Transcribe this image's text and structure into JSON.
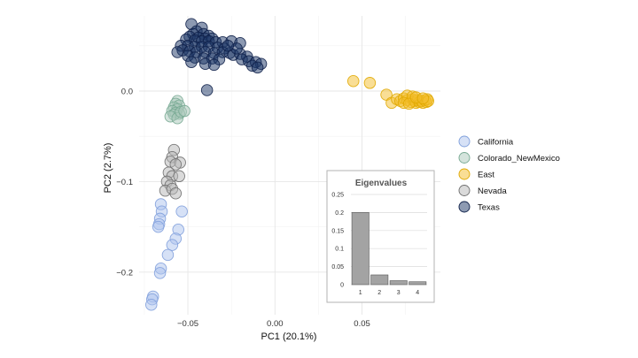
{
  "chart_data": [
    {
      "type": "scatter",
      "xlabel": "PC1 (20.1%)",
      "ylabel": "PC2 (2.7%)",
      "xlim": [
        -0.078,
        0.095
      ],
      "ylim": [
        -0.247,
        0.083
      ],
      "x_ticks": [
        -0.05,
        0.0,
        0.05
      ],
      "x_tick_labels": [
        "−0.05",
        "0.00",
        "0.05"
      ],
      "y_ticks": [
        -0.2,
        -0.1,
        0.0
      ],
      "y_tick_labels": [
        "−0.2",
        "−0.1",
        "0.0"
      ],
      "grid": true,
      "legend_position": "right",
      "series": [
        {
          "name": "California",
          "fill": "#aec4ee",
          "stroke": "#7f9fdb",
          "points": [
            [
              -0.0655,
              -0.125
            ],
            [
              -0.065,
              -0.133
            ],
            [
              -0.066,
              -0.141
            ],
            [
              -0.0665,
              -0.147
            ],
            [
              -0.067,
              -0.15
            ],
            [
              -0.0535,
              -0.133
            ],
            [
              -0.0555,
              -0.153
            ],
            [
              -0.057,
              -0.163
            ],
            [
              -0.059,
              -0.17
            ],
            [
              -0.0615,
              -0.181
            ],
            [
              -0.0655,
              -0.196
            ],
            [
              -0.066,
              -0.201
            ],
            [
              -0.07,
              -0.227
            ],
            [
              -0.0705,
              -0.23
            ],
            [
              -0.071,
              -0.236
            ]
          ]
        },
        {
          "name": "Colorado_NewMexico",
          "fill": "#a9c8b9",
          "stroke": "#77a892",
          "points": [
            [
              -0.056,
              -0.011
            ],
            [
              -0.057,
              -0.014
            ],
            [
              -0.055,
              -0.016
            ],
            [
              -0.058,
              -0.018
            ],
            [
              -0.056,
              -0.02
            ],
            [
              -0.059,
              -0.022
            ],
            [
              -0.057,
              -0.024
            ],
            [
              -0.055,
              -0.025
            ],
            [
              -0.058,
              -0.026
            ],
            [
              -0.06,
              -0.028
            ],
            [
              -0.056,
              -0.03
            ],
            [
              -0.054,
              -0.023
            ],
            [
              -0.052,
              -0.022
            ]
          ]
        },
        {
          "name": "East",
          "fill": "#f4bd2b",
          "stroke": "#e0a800",
          "points": [
            [
              0.045,
              0.011
            ],
            [
              0.0545,
              0.009
            ],
            [
              0.064,
              -0.004
            ],
            [
              0.067,
              -0.013
            ],
            [
              0.07,
              -0.009
            ],
            [
              0.072,
              -0.011
            ],
            [
              0.074,
              -0.008
            ],
            [
              0.076,
              -0.01
            ],
            [
              0.078,
              -0.012
            ],
            [
              0.079,
              -0.009
            ],
            [
              0.08,
              -0.011
            ],
            [
              0.081,
              -0.013
            ],
            [
              0.082,
              -0.01
            ],
            [
              0.083,
              -0.012
            ],
            [
              0.084,
              -0.011
            ],
            [
              0.085,
              -0.013
            ],
            [
              0.086,
              -0.01
            ],
            [
              0.087,
              -0.012
            ],
            [
              0.0875,
              -0.009
            ],
            [
              0.088,
              -0.011
            ],
            [
              0.076,
              -0.005
            ],
            [
              0.079,
              -0.006
            ],
            [
              0.074,
              -0.013
            ],
            [
              0.077,
              -0.014
            ],
            [
              0.081,
              -0.007
            ],
            [
              0.085,
              -0.008
            ]
          ]
        },
        {
          "name": "Nevada",
          "fill": "#b5b5b5",
          "stroke": "#6e6e6e",
          "points": [
            [
              -0.058,
              -0.065
            ],
            [
              -0.059,
              -0.073
            ],
            [
              -0.06,
              -0.078
            ],
            [
              -0.0545,
              -0.079
            ],
            [
              -0.057,
              -0.081
            ],
            [
              -0.061,
              -0.09
            ],
            [
              -0.059,
              -0.094
            ],
            [
              -0.055,
              -0.094
            ],
            [
              -0.062,
              -0.1
            ],
            [
              -0.06,
              -0.104
            ],
            [
              -0.063,
              -0.11
            ],
            [
              -0.059,
              -0.108
            ],
            [
              -0.057,
              -0.113
            ]
          ]
        },
        {
          "name": "Texas",
          "fill": "#1c3566",
          "stroke": "#0f2049",
          "points": [
            [
              -0.048,
              0.074
            ],
            [
              -0.042,
              0.07
            ],
            [
              -0.045,
              0.066
            ],
            [
              -0.041,
              0.063
            ],
            [
              -0.047,
              0.063
            ],
            [
              -0.038,
              0.061
            ],
            [
              -0.049,
              0.06
            ],
            [
              -0.044,
              0.059
            ],
            [
              -0.04,
              0.058
            ],
            [
              -0.036,
              0.058
            ],
            [
              -0.051,
              0.057
            ],
            [
              -0.046,
              0.056
            ],
            [
              -0.042,
              0.055
            ],
            [
              -0.038,
              0.055
            ],
            [
              -0.034,
              0.054
            ],
            [
              -0.03,
              0.054
            ],
            [
              -0.025,
              0.055
            ],
            [
              -0.02,
              0.053
            ],
            [
              -0.054,
              0.05
            ],
            [
              -0.05,
              0.05
            ],
            [
              -0.046,
              0.049
            ],
            [
              -0.042,
              0.049
            ],
            [
              -0.038,
              0.049
            ],
            [
              -0.033,
              0.048
            ],
            [
              -0.029,
              0.047
            ],
            [
              -0.053,
              0.045
            ],
            [
              -0.049,
              0.044
            ],
            [
              -0.045,
              0.043
            ],
            [
              -0.04,
              0.043
            ],
            [
              -0.035,
              0.042
            ],
            [
              -0.03,
              0.043
            ],
            [
              -0.026,
              0.042
            ],
            [
              -0.024,
              0.04
            ],
            [
              -0.02,
              0.041
            ],
            [
              -0.016,
              0.038
            ],
            [
              -0.05,
              0.039
            ],
            [
              -0.046,
              0.037
            ],
            [
              -0.041,
              0.036
            ],
            [
              -0.036,
              0.036
            ],
            [
              -0.032,
              0.035
            ],
            [
              -0.019,
              0.035
            ],
            [
              -0.015,
              0.033
            ],
            [
              -0.011,
              0.032
            ],
            [
              -0.008,
              0.03
            ],
            [
              -0.04,
              0.03
            ],
            [
              -0.035,
              0.029
            ],
            [
              -0.013,
              0.028
            ],
            [
              -0.01,
              0.026
            ],
            [
              -0.048,
              0.032
            ],
            [
              -0.056,
              0.043
            ],
            [
              -0.022,
              0.047
            ],
            [
              -0.027,
              0.05
            ],
            [
              -0.039,
              0.001
            ]
          ]
        }
      ],
      "legend": [
        "California",
        "Colorado_NewMexico",
        "East",
        "Nevada",
        "Texas"
      ]
    },
    {
      "type": "bar",
      "title": "Eigenvalues",
      "categories": [
        "1",
        "2",
        "3",
        "4"
      ],
      "values": [
        0.2,
        0.027,
        0.011,
        0.008
      ],
      "ylim": [
        0,
        0.25
      ],
      "y_ticks": [
        0,
        0.05,
        0.1,
        0.15,
        0.2,
        0.25
      ],
      "y_tick_labels": [
        "0",
        "0.05",
        "0.1",
        "0.15",
        "0.2",
        "0.25"
      ],
      "bar_color": "#a3a3a3"
    }
  ]
}
